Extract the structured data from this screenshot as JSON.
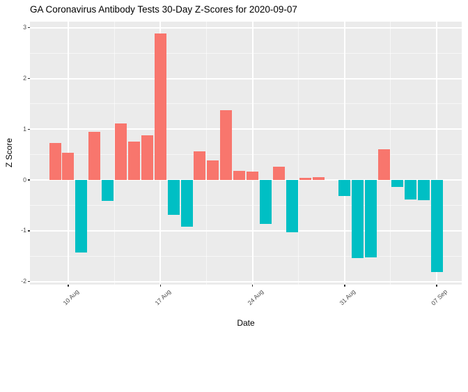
{
  "header": {
    "title": "GA Coronavirus Antibody Tests 30-Day Z-Scores for 2020-09-07"
  },
  "chart_data": {
    "type": "bar",
    "title": "GA Coronavirus Antibody Tests 30-Day Z-Scores for 2020-09-07",
    "xlabel": "Date",
    "ylabel": "Z Score",
    "dates": [
      "2020-08-09",
      "2020-08-10",
      "2020-08-11",
      "2020-08-12",
      "2020-08-13",
      "2020-08-14",
      "2020-08-15",
      "2020-08-16",
      "2020-08-17",
      "2020-08-18",
      "2020-08-19",
      "2020-08-20",
      "2020-08-21",
      "2020-08-22",
      "2020-08-23",
      "2020-08-24",
      "2020-08-25",
      "2020-08-26",
      "2020-08-27",
      "2020-08-28",
      "2020-08-29",
      "2020-08-30",
      "2020-08-31",
      "2020-09-01",
      "2020-09-02",
      "2020-09-03",
      "2020-09-04",
      "2020-09-05",
      "2020-09-06",
      "2020-09-07"
    ],
    "values": [
      0.73,
      0.54,
      -1.43,
      0.95,
      -0.41,
      1.11,
      0.75,
      0.88,
      2.88,
      -0.69,
      -0.92,
      0.56,
      0.39,
      1.37,
      0.18,
      0.16,
      -0.87,
      0.26,
      -1.03,
      0.04,
      0.05,
      0,
      -0.32,
      -1.54,
      -1.52,
      0.61,
      -0.14,
      -0.39,
      -0.4,
      -1.81
    ],
    "positive_color": "#F8766D",
    "negative_color": "#00BFC4",
    "panel_bg": "#EBEBEB",
    "grid_color": "#FFFFFF",
    "tick_label_color": "#4D4D4D",
    "axis_title_color": "#000000",
    "title_color": "#000000",
    "ylim": [
      -2.06,
      3.12
    ],
    "yticks": [
      3,
      2,
      1,
      0,
      -1,
      -2
    ],
    "y_minor": [
      2.5,
      1.5,
      0.5,
      -0.5,
      -1.5
    ],
    "x_domain_days": [
      -1.91,
      30.9
    ],
    "xticks": [
      {
        "label": "10 Aug",
        "day": 1
      },
      {
        "label": "17 Aug",
        "day": 8
      },
      {
        "label": "24 Aug",
        "day": 15
      },
      {
        "label": "31 Aug",
        "day": 22
      },
      {
        "label": "07 Sep",
        "day": 29
      }
    ],
    "x_minor_days": [
      4.5,
      11.5,
      18.5,
      25.5
    ],
    "bar_width_days": 0.9,
    "grid": true,
    "legend": "none"
  }
}
